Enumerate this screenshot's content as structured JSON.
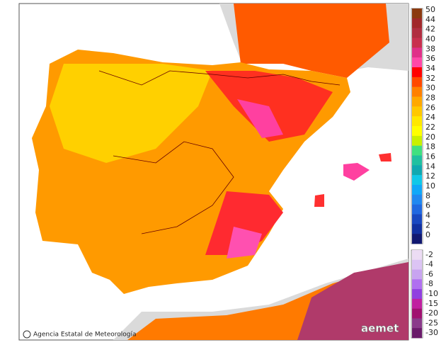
{
  "legend": {
    "upper": [
      {
        "label": "50",
        "color": "#8b3a0f"
      },
      {
        "label": "44",
        "color": "#a0282a"
      },
      {
        "label": "42",
        "color": "#b02e40"
      },
      {
        "label": "40",
        "color": "#c8304e"
      },
      {
        "label": "38",
        "color": "#e03088"
      },
      {
        "label": "36",
        "color": "#ff48a8"
      },
      {
        "label": "34",
        "color": "#ff0000"
      },
      {
        "label": "32",
        "color": "#ff4800"
      },
      {
        "label": "30",
        "color": "#ff8000"
      },
      {
        "label": "28",
        "color": "#ffa800"
      },
      {
        "label": "26",
        "color": "#ffc800"
      },
      {
        "label": "24",
        "color": "#ffe800"
      },
      {
        "label": "22",
        "color": "#ffff00"
      },
      {
        "label": "20",
        "color": "#c8f000"
      },
      {
        "label": "18",
        "color": "#40e080"
      },
      {
        "label": "16",
        "color": "#20c0a0"
      },
      {
        "label": "14",
        "color": "#10a8b0"
      },
      {
        "label": "12",
        "color": "#10c8e8"
      },
      {
        "label": "10",
        "color": "#10a8f8"
      },
      {
        "label": "8",
        "color": "#2088f0"
      },
      {
        "label": "6",
        "color": "#2068e0"
      },
      {
        "label": "4",
        "color": "#1848c0"
      },
      {
        "label": "2",
        "color": "#1030a0"
      },
      {
        "label": "0",
        "color": "#101870"
      }
    ],
    "lower": [
      {
        "label": "-2",
        "color": "#ecdcf4"
      },
      {
        "label": "-4",
        "color": "#dcc4f4"
      },
      {
        "label": "-6",
        "color": "#c8a4f0"
      },
      {
        "label": "-8",
        "color": "#b070f0"
      },
      {
        "label": "-10",
        "color": "#9040e0"
      },
      {
        "label": "-15",
        "color": "#c020a0"
      },
      {
        "label": "-20",
        "color": "#a01070"
      },
      {
        "label": "-25",
        "color": "#8a3a8a"
      },
      {
        "label": "-30",
        "color": "#6a1a6a"
      }
    ]
  },
  "footer": {
    "credit": "Agencia Estatal de Meteorología",
    "logo": "aemet"
  }
}
